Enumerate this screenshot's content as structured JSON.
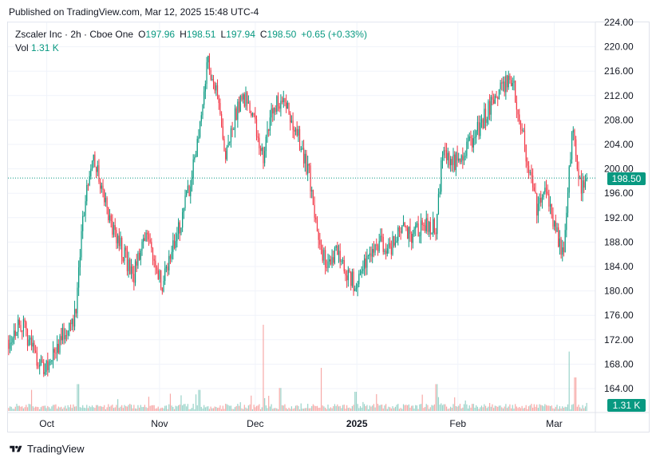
{
  "header": {
    "published": "Published on TradingView.com, Mar 12, 2025 15:48 UTC-4"
  },
  "legend": {
    "symbol": "Zscaler Inc · 2h · Cboe One",
    "o_label": "O",
    "o_value": "197.96",
    "h_label": "H",
    "h_value": "198.51",
    "l_label": "L",
    "l_value": "197.94",
    "c_label": "C",
    "c_value": "198.50",
    "change": "+0.65 (+0.33%)",
    "vol_label": "Vol",
    "vol_value": "1.31 K"
  },
  "price_tag": "198.50",
  "volume_tag": "1.31 K",
  "footer": {
    "brand": "TradingView"
  },
  "colors": {
    "up": "#089981",
    "down": "#f23645",
    "up_vol": "#9ad3c9",
    "down_vol": "#f7a9a7",
    "grid": "#f0f3fa",
    "last_line": "#089981"
  },
  "chart_data": {
    "type": "candlestick",
    "y_ticks": [
      "224.00",
      "220.00",
      "216.00",
      "212.00",
      "208.00",
      "204.00",
      "200.00",
      "196.00",
      "192.00",
      "188.00",
      "184.00",
      "180.00",
      "176.00",
      "172.00",
      "168.00",
      "164.00"
    ],
    "x_ticks": [
      {
        "label": "Oct",
        "pos": 0.066
      },
      {
        "label": "Nov",
        "pos": 0.258
      },
      {
        "label": "Dec",
        "pos": 0.421
      },
      {
        "label": "2025",
        "pos": 0.594,
        "bold": true
      },
      {
        "label": "Feb",
        "pos": 0.766
      },
      {
        "label": "Mar",
        "pos": 0.93
      }
    ],
    "ylim": [
      162,
      226
    ],
    "last_price": 198.5,
    "path": [
      [
        0.0,
        172
      ],
      [
        0.02,
        175
      ],
      [
        0.035,
        172
      ],
      [
        0.06,
        167
      ],
      [
        0.075,
        169
      ],
      [
        0.1,
        174
      ],
      [
        0.115,
        176
      ],
      [
        0.13,
        193
      ],
      [
        0.145,
        203
      ],
      [
        0.16,
        197
      ],
      [
        0.18,
        190
      ],
      [
        0.2,
        186
      ],
      [
        0.215,
        182
      ],
      [
        0.235,
        189
      ],
      [
        0.25,
        186
      ],
      [
        0.265,
        181
      ],
      [
        0.285,
        187
      ],
      [
        0.3,
        192
      ],
      [
        0.315,
        198
      ],
      [
        0.33,
        207
      ],
      [
        0.345,
        218
      ],
      [
        0.36,
        212
      ],
      [
        0.375,
        201
      ],
      [
        0.39,
        208
      ],
      [
        0.405,
        212
      ],
      [
        0.42,
        210
      ],
      [
        0.44,
        202
      ],
      [
        0.455,
        210
      ],
      [
        0.475,
        212
      ],
      [
        0.49,
        208
      ],
      [
        0.505,
        204
      ],
      [
        0.52,
        199
      ],
      [
        0.535,
        188
      ],
      [
        0.55,
        184
      ],
      [
        0.57,
        187
      ],
      [
        0.585,
        183
      ],
      [
        0.6,
        181
      ],
      [
        0.62,
        185
      ],
      [
        0.64,
        188
      ],
      [
        0.66,
        187
      ],
      [
        0.68,
        190
      ],
      [
        0.7,
        189
      ],
      [
        0.72,
        191
      ],
      [
        0.74,
        190
      ],
      [
        0.75,
        203
      ],
      [
        0.77,
        201
      ],
      [
        0.79,
        203
      ],
      [
        0.81,
        206
      ],
      [
        0.83,
        210
      ],
      [
        0.85,
        213
      ],
      [
        0.87,
        215
      ],
      [
        0.885,
        208
      ],
      [
        0.9,
        200
      ],
      [
        0.915,
        193
      ],
      [
        0.93,
        197
      ],
      [
        0.945,
        190
      ],
      [
        0.96,
        186
      ],
      [
        0.975,
        206
      ],
      [
        0.99,
        197
      ],
      [
        1.0,
        198.5
      ]
    ],
    "n_candles": 430,
    "volume_spikes": [
      [
        0.04,
        0.22
      ],
      [
        0.12,
        0.28
      ],
      [
        0.28,
        0.18
      ],
      [
        0.33,
        0.22
      ],
      [
        0.44,
        0.9
      ],
      [
        0.47,
        0.24
      ],
      [
        0.54,
        0.45
      ],
      [
        0.6,
        0.2
      ],
      [
        0.74,
        0.28
      ],
      [
        0.97,
        0.62
      ],
      [
        0.98,
        0.35
      ]
    ]
  }
}
